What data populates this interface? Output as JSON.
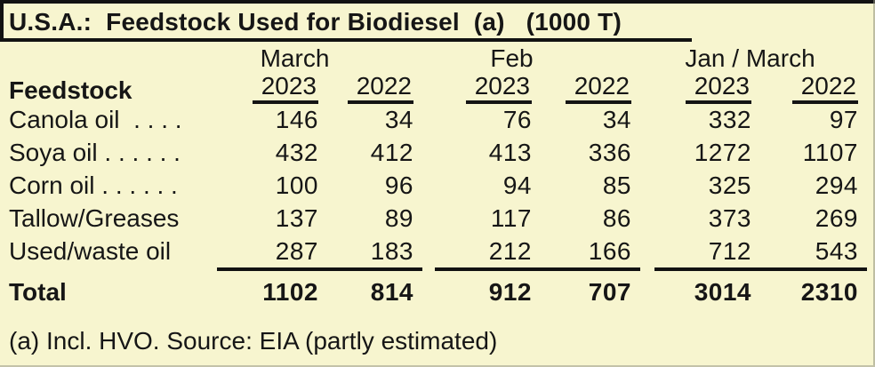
{
  "title": "U.S.A.:  Feedstock Used for Biodiesel  (a)   (1000 T)",
  "table": {
    "group_headers": [
      "March",
      "Feb",
      "Jan / March"
    ],
    "row_header_label": "Feedstock",
    "year_headers": [
      "2023",
      "2022",
      "2023",
      "2022",
      "2023",
      "2022"
    ],
    "rows": [
      {
        "label": "Canola oil  . . . .",
        "values": [
          "146",
          "34",
          "76",
          "34",
          "332",
          "97"
        ]
      },
      {
        "label": "Soya oil . . . . . .",
        "values": [
          "432",
          "412",
          "413",
          "336",
          "1272",
          "1107"
        ]
      },
      {
        "label": "Corn oil . . . . . .",
        "values": [
          "100",
          "96",
          "94",
          "85",
          "325",
          "294"
        ]
      },
      {
        "label": "Tallow/Greases",
        "values": [
          "137",
          "89",
          "117",
          "86",
          "373",
          "269"
        ]
      },
      {
        "label": "Used/waste oil",
        "values": [
          "287",
          "183",
          "212",
          "166",
          "712",
          "543"
        ]
      }
    ],
    "total_row": {
      "label": "Total",
      "values": [
        "1102",
        "814",
        "912",
        "707",
        "3014",
        "2310"
      ]
    }
  },
  "footnote": "(a) Incl. HVO. Source: EIA (partly estimated)",
  "colors": {
    "background": "#f7f5cf",
    "text": "#161616",
    "rule": "#121212"
  },
  "chart_data": {
    "type": "table",
    "title": "U.S.A.: Feedstock Used for Biodiesel (a) (1000 T)",
    "columns": [
      "Feedstock",
      "March 2023",
      "March 2022",
      "Feb 2023",
      "Feb 2022",
      "Jan / March 2023",
      "Jan / March 2022"
    ],
    "rows": [
      [
        "Canola oil",
        146,
        34,
        76,
        34,
        332,
        97
      ],
      [
        "Soya oil",
        432,
        412,
        413,
        336,
        1272,
        1107
      ],
      [
        "Corn oil",
        100,
        96,
        94,
        85,
        325,
        294
      ],
      [
        "Tallow/Greases",
        137,
        89,
        117,
        86,
        373,
        269
      ],
      [
        "Used/waste oil",
        287,
        183,
        212,
        166,
        712,
        543
      ],
      [
        "Total",
        1102,
        814,
        912,
        707,
        3014,
        2310
      ]
    ],
    "footnote": "(a) Incl. HVO. Source: EIA (partly estimated)",
    "units": "1000 T"
  }
}
